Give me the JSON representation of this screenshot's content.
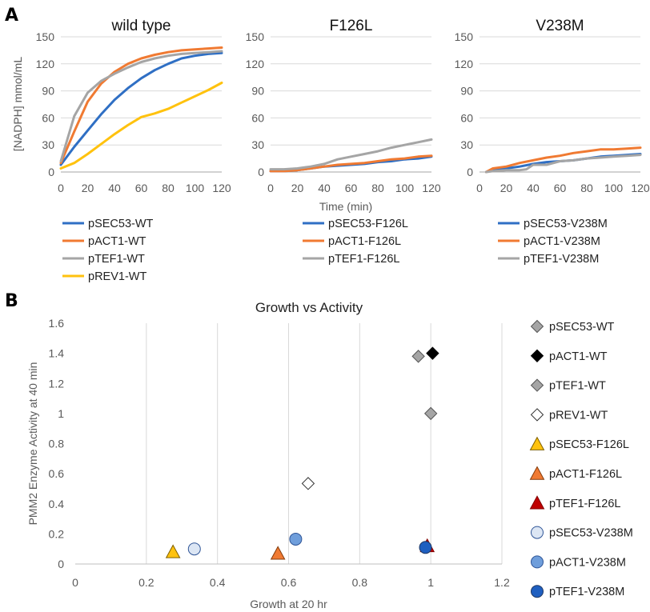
{
  "panel_a": {
    "letter": "A",
    "ylabel": "[NADPH] mmol/mL",
    "xlabel": "Time (min)"
  },
  "panel_b": {
    "letter": "B"
  },
  "colors": {
    "pSEC53": "#2F6FC4",
    "pACT1": "#F07A32",
    "pTEF1": "#A5A5A5",
    "pREV1": "#FFC20E"
  },
  "chart_data": [
    {
      "type": "line",
      "title": "wild type",
      "xlim": [
        0,
        120
      ],
      "ylim": [
        0,
        150
      ],
      "xticks": [
        0,
        20,
        40,
        60,
        80,
        100,
        120
      ],
      "yticks": [
        0,
        30,
        60,
        90,
        120,
        150
      ],
      "series": [
        {
          "name": "pSEC53-WT",
          "color": "#2F6FC4",
          "x": [
            0,
            10,
            20,
            30,
            40,
            50,
            60,
            70,
            80,
            90,
            100,
            110,
            120
          ],
          "y": [
            8,
            28,
            46,
            64,
            80,
            93,
            104,
            113,
            120,
            126,
            129,
            131,
            132
          ]
        },
        {
          "name": "pACT1-WT",
          "color": "#F07A32",
          "x": [
            0,
            10,
            20,
            30,
            40,
            50,
            60,
            70,
            80,
            90,
            100,
            110,
            120
          ],
          "y": [
            10,
            45,
            78,
            98,
            111,
            120,
            126,
            130,
            133,
            135,
            136,
            137,
            138
          ]
        },
        {
          "name": "pTEF1-WT",
          "color": "#A5A5A5",
          "x": [
            0,
            10,
            20,
            30,
            40,
            50,
            60,
            70,
            80,
            90,
            100,
            110,
            120
          ],
          "y": [
            12,
            62,
            88,
            101,
            109,
            116,
            122,
            126,
            129,
            131,
            132,
            133,
            134
          ]
        },
        {
          "name": "pREV1-WT",
          "color": "#FFC20E",
          "x": [
            0,
            10,
            20,
            30,
            40,
            50,
            60,
            70,
            80,
            90,
            100,
            110,
            120
          ],
          "y": [
            4,
            10,
            20,
            31,
            42,
            52,
            61,
            65,
            70,
            77,
            84,
            91,
            99
          ]
        }
      ]
    },
    {
      "type": "line",
      "title": "F126L",
      "xlim": [
        0,
        120
      ],
      "ylim": [
        0,
        150
      ],
      "xticks": [
        0,
        20,
        40,
        60,
        80,
        100,
        120
      ],
      "yticks": [
        0,
        30,
        60,
        90,
        120,
        150
      ],
      "series": [
        {
          "name": "pSEC53-F126L",
          "color": "#2F6FC4",
          "x": [
            0,
            10,
            20,
            30,
            40,
            50,
            60,
            70,
            80,
            90,
            100,
            110,
            120
          ],
          "y": [
            1,
            1,
            2,
            4,
            6,
            7,
            8,
            9,
            11,
            12,
            14,
            15,
            17
          ]
        },
        {
          "name": "pACT1-F126L",
          "color": "#F07A32",
          "x": [
            0,
            10,
            20,
            30,
            40,
            50,
            60,
            70,
            80,
            90,
            100,
            110,
            120
          ],
          "y": [
            1,
            1,
            2,
            4,
            6,
            8,
            9,
            10,
            12,
            14,
            15,
            17,
            18
          ]
        },
        {
          "name": "pTEF1-F126L",
          "color": "#A5A5A5",
          "x": [
            0,
            10,
            20,
            30,
            40,
            50,
            60,
            70,
            80,
            90,
            100,
            110,
            120
          ],
          "y": [
            3,
            3,
            4,
            6,
            9,
            14,
            17,
            20,
            23,
            27,
            30,
            33,
            36
          ]
        }
      ]
    },
    {
      "type": "line",
      "title": "V238M",
      "xlim": [
        0,
        120
      ],
      "ylim": [
        0,
        150
      ],
      "xticks": [
        0,
        20,
        40,
        60,
        80,
        100,
        120
      ],
      "yticks": [
        0,
        30,
        60,
        90,
        120,
        150
      ],
      "series": [
        {
          "name": "pSEC53-V238M",
          "color": "#2F6FC4",
          "x": [
            5,
            10,
            20,
            30,
            40,
            50,
            60,
            70,
            80,
            90,
            100,
            110,
            120
          ],
          "y": [
            0,
            3,
            4,
            6,
            9,
            11,
            12,
            13,
            15,
            17,
            18,
            19,
            20
          ]
        },
        {
          "name": "pACT1-V238M",
          "color": "#F07A32",
          "x": [
            5,
            10,
            20,
            30,
            40,
            50,
            60,
            70,
            80,
            90,
            100,
            110,
            120
          ],
          "y": [
            0,
            4,
            6,
            10,
            13,
            16,
            18,
            21,
            23,
            25,
            25,
            26,
            27
          ]
        },
        {
          "name": "pTEF1-V238M",
          "color": "#A5A5A5",
          "x": [
            5,
            10,
            20,
            30,
            35,
            40,
            50,
            60,
            70,
            80,
            90,
            100,
            110,
            120
          ],
          "y": [
            0,
            1,
            2,
            2,
            3,
            8,
            8,
            12,
            13,
            15,
            16,
            17,
            18,
            19
          ]
        }
      ]
    },
    {
      "type": "scatter",
      "title": "Growth vs Activity",
      "xlabel": "Growth at 20 hr",
      "ylabel": "PMM2 Enzyme Activity at 40 min",
      "xlim": [
        0,
        1.2
      ],
      "ylim": [
        0,
        1.6
      ],
      "xticks": [
        0,
        0.2,
        0.4,
        0.6,
        0.8,
        1,
        1.2
      ],
      "yticks": [
        0,
        0.2,
        0.4,
        0.6,
        0.8,
        1,
        1.2,
        1.4,
        1.6
      ],
      "grid": "vertical",
      "legend": "right",
      "series": [
        {
          "name": "pSEC53-WT",
          "marker": "diamond",
          "fill": "#A5A5A5",
          "stroke": "#555555",
          "x": [
            1.0
          ],
          "y": [
            1.0
          ]
        },
        {
          "name": "pACT1-WT",
          "marker": "diamond",
          "fill": "#000000",
          "stroke": "#000000",
          "x": [
            1.005
          ],
          "y": [
            1.4
          ]
        },
        {
          "name": "pTEF1-WT",
          "marker": "diamond",
          "fill": "#A5A5A5",
          "stroke": "#555555",
          "x": [
            0.965
          ],
          "y": [
            1.38
          ]
        },
        {
          "name": "pREV1-WT",
          "marker": "diamond",
          "fill": "#FFFFFF",
          "stroke": "#333333",
          "x": [
            0.655
          ],
          "y": [
            0.535
          ]
        },
        {
          "name": "pSEC53-F126L",
          "marker": "triangle",
          "fill": "#FFC20E",
          "stroke": "#7F6000",
          "x": [
            0.275
          ],
          "y": [
            0.08
          ]
        },
        {
          "name": "pACT1-F126L",
          "marker": "triangle",
          "fill": "#F07A32",
          "stroke": "#843C0C",
          "x": [
            0.57
          ],
          "y": [
            0.07
          ]
        },
        {
          "name": "pTEF1-F126L",
          "marker": "triangle",
          "fill": "#C00000",
          "stroke": "#800000",
          "x": [
            0.99
          ],
          "y": [
            0.12
          ]
        },
        {
          "name": "pSEC53-V238M",
          "marker": "circle",
          "fill": "#DCE6F4",
          "stroke": "#2F5597",
          "x": [
            0.335
          ],
          "y": [
            0.1
          ]
        },
        {
          "name": "pACT1-V238M",
          "marker": "circle",
          "fill": "#6F9EDB",
          "stroke": "#2F5597",
          "x": [
            0.62
          ],
          "y": [
            0.165
          ]
        },
        {
          "name": "pTEF1-V238M",
          "marker": "circle",
          "fill": "#1F5FC0",
          "stroke": "#1F3864",
          "x": [
            0.985
          ],
          "y": [
            0.11
          ]
        }
      ]
    }
  ]
}
